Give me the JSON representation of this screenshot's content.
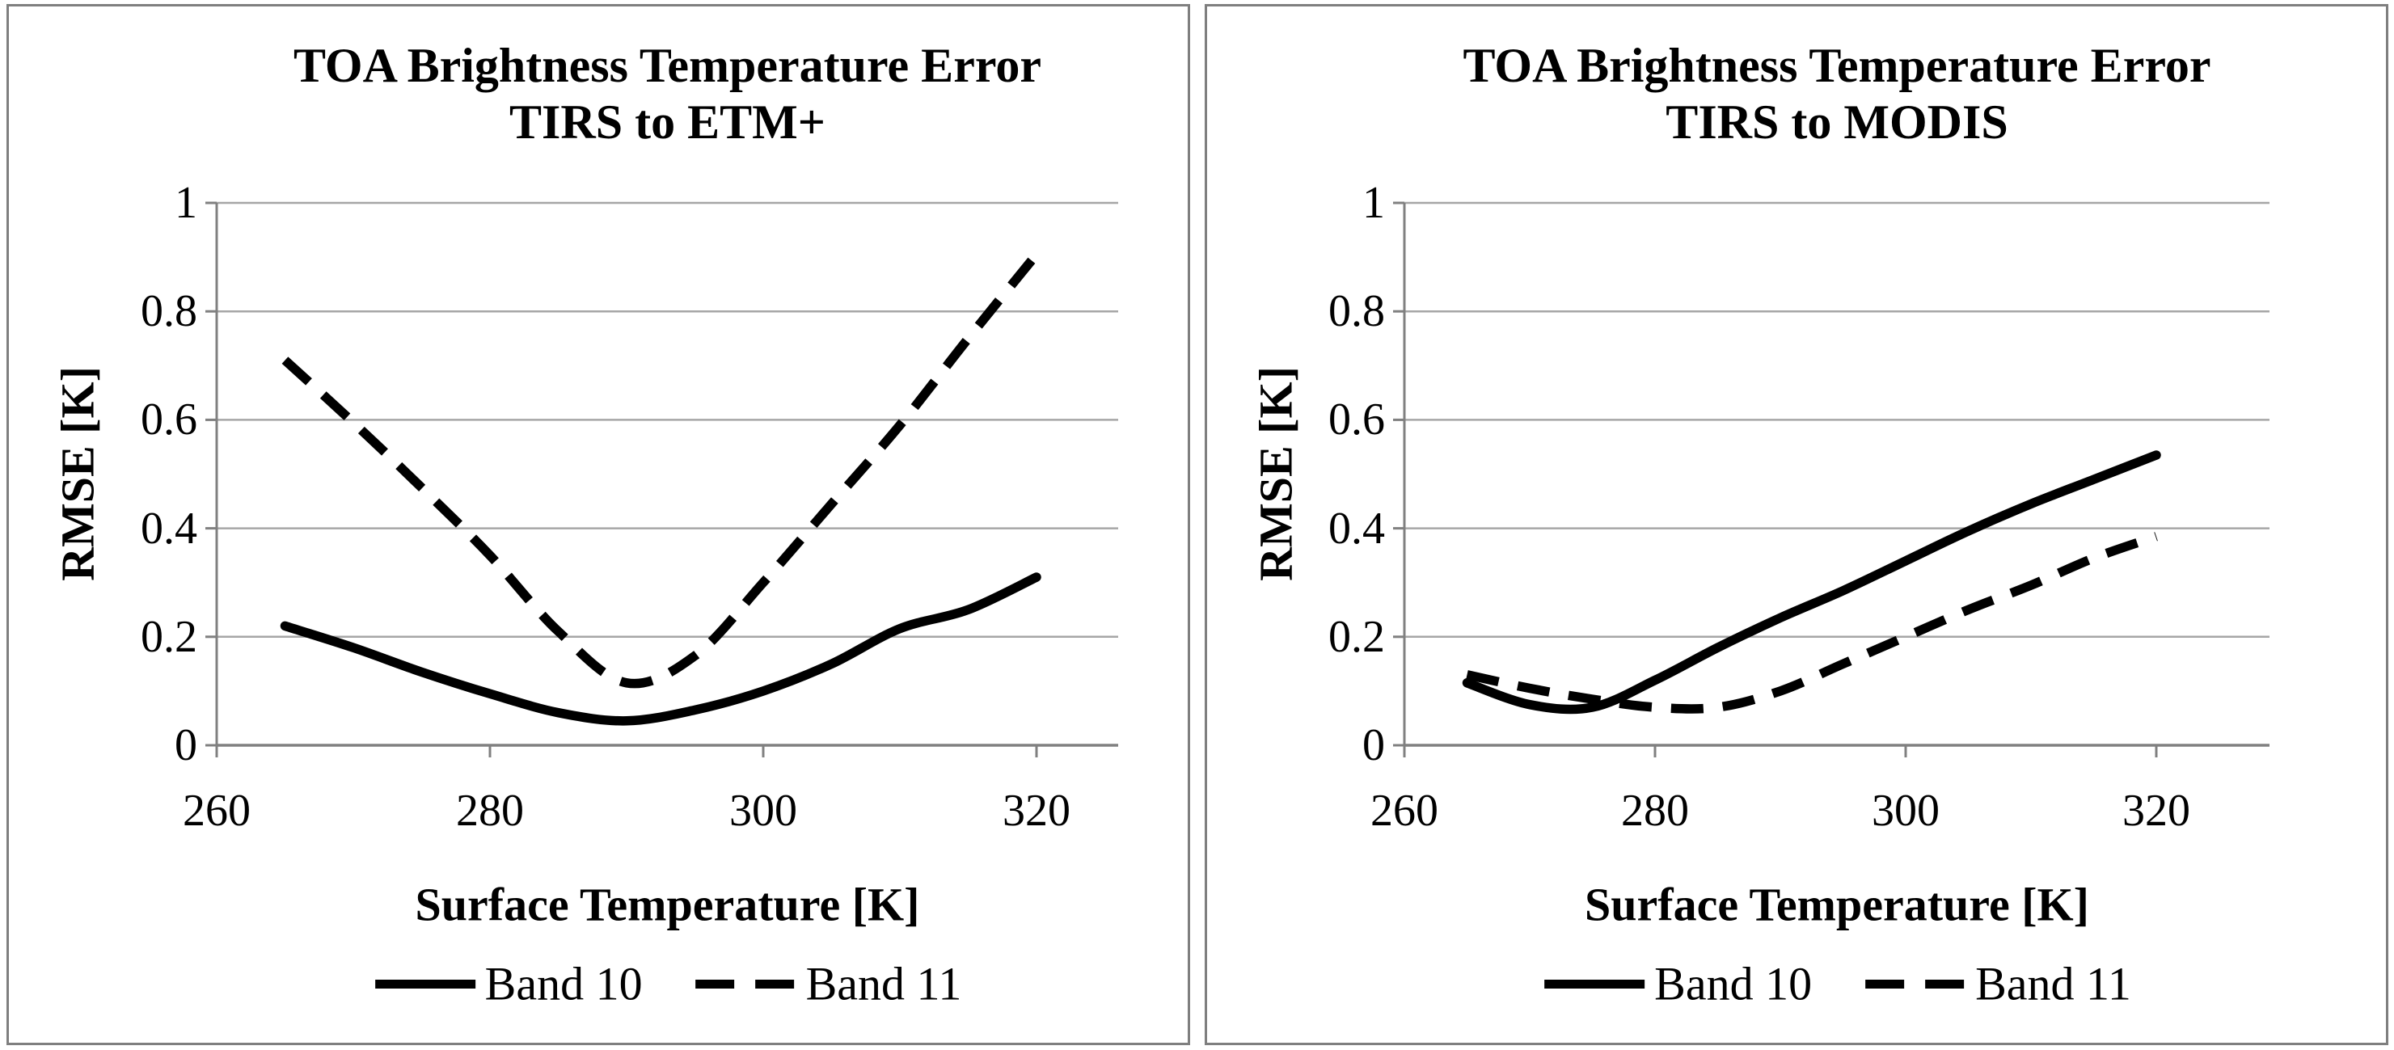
{
  "figure": {
    "background": "#ffffff",
    "panel_border_color": "#7f7f7f",
    "gridline_color": "#a6a6a6",
    "axis_color": "#808080",
    "line_color": "#000000"
  },
  "chart_data": [
    {
      "type": "line",
      "title": "TOA Brightness Temperature Error",
      "subtitle": "TIRS to ETM+",
      "xlabel": "Surface Temperature [K]",
      "ylabel": "RMSE [K]",
      "grid": true,
      "legend_position": "bottom",
      "xlim": [
        260,
        326
      ],
      "ylim": [
        0,
        1
      ],
      "x_tick_values": [
        260,
        280,
        300,
        320
      ],
      "x_tick_labels": [
        "260",
        "280",
        "300",
        "320"
      ],
      "y_tick_values": [
        0,
        0.2,
        0.4,
        0.6,
        0.8,
        1
      ],
      "y_tick_labels": [
        "0",
        "0.2",
        "0.4",
        "0.6",
        "0.8",
        "1"
      ],
      "x": [
        265,
        270,
        275,
        280,
        285,
        290,
        295,
        300,
        305,
        310,
        315,
        320
      ],
      "series": [
        {
          "name": "Band 10",
          "style": "solid",
          "values": [
            0.22,
            0.18,
            0.135,
            0.095,
            0.06,
            0.045,
            0.065,
            0.1,
            0.15,
            0.215,
            0.25,
            0.31
          ]
        },
        {
          "name": "Band 11",
          "style": "dashed",
          "values": [
            0.71,
            0.595,
            0.475,
            0.35,
            0.21,
            0.115,
            0.165,
            0.3,
            0.445,
            0.59,
            0.75,
            0.905
          ]
        }
      ]
    },
    {
      "type": "line",
      "title": "TOA Brightness Temperature Error",
      "subtitle": "TIRS to MODIS",
      "xlabel": "Surface Temperature [K]",
      "ylabel": "RMSE [K]",
      "grid": true,
      "legend_position": "bottom",
      "xlim": [
        260,
        329
      ],
      "ylim": [
        0,
        1
      ],
      "x_tick_values": [
        260,
        280,
        300,
        320
      ],
      "x_tick_labels": [
        "260",
        "280",
        "300",
        "320"
      ],
      "y_tick_values": [
        0,
        0.2,
        0.4,
        0.6,
        0.8,
        1
      ],
      "y_tick_labels": [
        "0",
        "0.2",
        "0.4",
        "0.6",
        "0.8",
        "1"
      ],
      "x": [
        265,
        270,
        275,
        280,
        285,
        290,
        295,
        300,
        305,
        310,
        315,
        320
      ],
      "series": [
        {
          "name": "Band 10",
          "style": "solid",
          "values": [
            0.115,
            0.075,
            0.07,
            0.12,
            0.18,
            0.235,
            0.285,
            0.34,
            0.395,
            0.445,
            0.49,
            0.535
          ]
        },
        {
          "name": "Band 11",
          "style": "dashed",
          "values": [
            0.13,
            0.105,
            0.085,
            0.07,
            0.07,
            0.1,
            0.15,
            0.2,
            0.25,
            0.295,
            0.345,
            0.385
          ]
        }
      ]
    }
  ]
}
